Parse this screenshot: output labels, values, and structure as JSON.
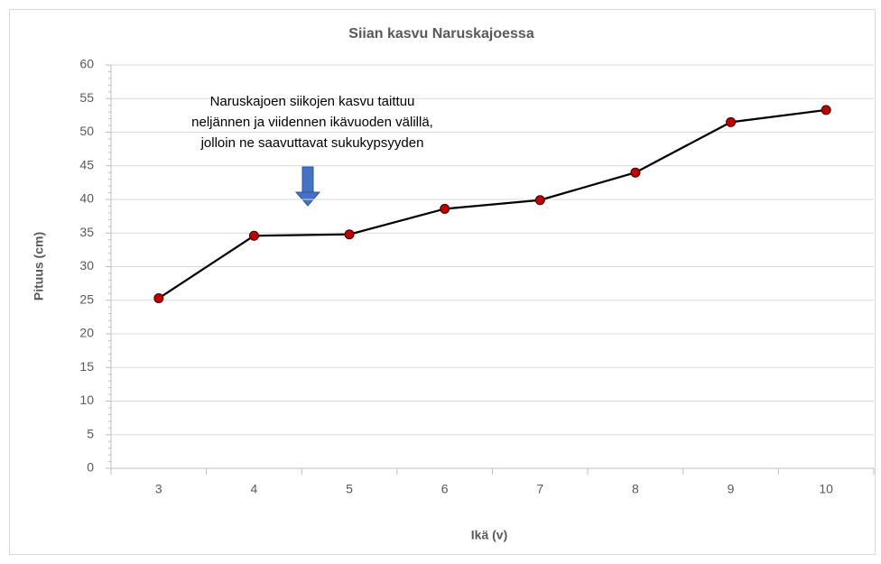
{
  "chart_data": {
    "type": "line",
    "title": "Siian kasvu Naruskajoessa",
    "x_label": "Ikä (v)",
    "y_label": "Pituus (cm)",
    "categories": [
      "3",
      "4",
      "5",
      "6",
      "7",
      "8",
      "9",
      "10"
    ],
    "values": [
      25.3,
      34.6,
      34.8,
      38.6,
      39.9,
      44.0,
      51.5,
      53.3
    ],
    "color": "#000000",
    "marker_color": "#c00000",
    "ylim": [
      0,
      60
    ],
    "yticks": [
      0,
      5,
      10,
      15,
      20,
      25,
      30,
      35,
      40,
      45,
      50,
      55,
      60
    ],
    "grid": true,
    "annotation": [
      "Naruskajoen siikojen kasvu taittuu",
      "neljännen ja viidennen ikävuoden välillä,",
      "jolloin ne saavuttavat sukukypsyyden"
    ]
  }
}
